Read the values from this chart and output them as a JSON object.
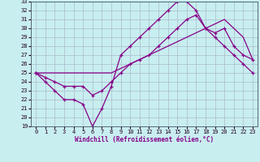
{
  "xlabel": "Windchill (Refroidissement éolien,°C)",
  "xlim": [
    -0.5,
    23.5
  ],
  "ylim": [
    19,
    33
  ],
  "xticks": [
    0,
    1,
    2,
    3,
    4,
    5,
    6,
    7,
    8,
    9,
    10,
    11,
    12,
    13,
    14,
    15,
    16,
    17,
    18,
    19,
    20,
    21,
    22,
    23
  ],
  "yticks": [
    19,
    20,
    21,
    22,
    23,
    24,
    25,
    26,
    27,
    28,
    29,
    30,
    31,
    32,
    33
  ],
  "bg_color": "#c8eef0",
  "grid_color": "#aabbcc",
  "line_color": "#880088",
  "line1_x": [
    0,
    1,
    2,
    3,
    4,
    5,
    6,
    7,
    8,
    9,
    10,
    11,
    12,
    13,
    14,
    15,
    16,
    17,
    18,
    19,
    20,
    21,
    22,
    23
  ],
  "line1_y": [
    25,
    24,
    23,
    22,
    22,
    21.5,
    19,
    21,
    23.5,
    27,
    28,
    29,
    30,
    31,
    32,
    33,
    33,
    32,
    30,
    29,
    28,
    27,
    26,
    25
  ],
  "line2_x": [
    0,
    1,
    2,
    3,
    4,
    5,
    6,
    7,
    8,
    9,
    10,
    11,
    12,
    13,
    14,
    15,
    16,
    17,
    18,
    19,
    20,
    21,
    22,
    23
  ],
  "line2_y": [
    25,
    24.5,
    24,
    23.5,
    23.5,
    23.5,
    22.5,
    23,
    24,
    25,
    26,
    26.5,
    27,
    28,
    29,
    30,
    31,
    31.5,
    30,
    29.5,
    30,
    28,
    27,
    26.5
  ],
  "line3_x": [
    0,
    1,
    2,
    3,
    4,
    5,
    6,
    7,
    8,
    9,
    10,
    11,
    12,
    13,
    14,
    15,
    16,
    17,
    18,
    19,
    20,
    21,
    22,
    23
  ],
  "line3_y": [
    25,
    25,
    25,
    25,
    25,
    25,
    25,
    25,
    25,
    25.5,
    26,
    26.5,
    27,
    27.5,
    28,
    28.5,
    29,
    29.5,
    30,
    30.5,
    31,
    30,
    29,
    26.5
  ]
}
